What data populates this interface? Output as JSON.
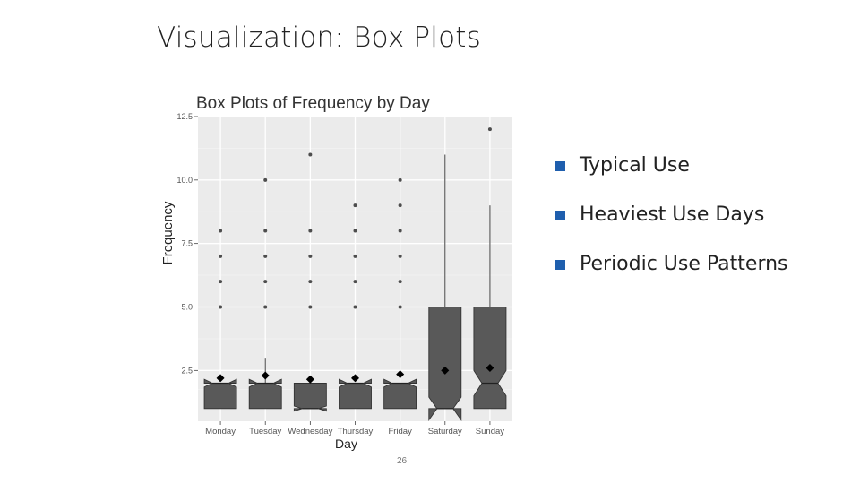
{
  "slide": {
    "title": "Visualization: Box Plots",
    "page_number": "26"
  },
  "bullets": [
    {
      "text": "Typical Use"
    },
    {
      "text": "Heaviest Use Days"
    },
    {
      "text": "Periodic Use Patterns"
    }
  ],
  "colors": {
    "bullet": "#1f5fae",
    "panel": "#ebebeb",
    "box_fill": "#595959",
    "mean_marker": "#000000",
    "outlier": "#4d4d4d"
  },
  "chart_data": {
    "type": "box",
    "title": "Box Plots of Frequency by Day",
    "xlabel": "Day",
    "ylabel": "Frequency",
    "ylim": [
      0.5,
      12.5
    ],
    "yticks": [
      2.5,
      5.0,
      7.5,
      10.0,
      12.5
    ],
    "ytick_labels": [
      "2.5",
      "5.0",
      "7.5",
      "10.0",
      "12.5"
    ],
    "grid": true,
    "notched": true,
    "categories": [
      "Monday",
      "Tuesday",
      "Wednesday",
      "Thursday",
      "Friday",
      "Saturday",
      "Sunday"
    ],
    "boxes": [
      {
        "day": "Monday",
        "min": 1,
        "q1": 1,
        "median": 2,
        "q3": 2,
        "max": 2,
        "mean": 2.2,
        "notch": [
          1.85,
          2.15
        ],
        "outliers": [
          5,
          6,
          7,
          8
        ]
      },
      {
        "day": "Tuesday",
        "min": 1,
        "q1": 1,
        "median": 2,
        "q3": 2,
        "max": 3,
        "mean": 2.3,
        "notch": [
          1.85,
          2.15
        ],
        "outliers": [
          5,
          6,
          7,
          8,
          10
        ]
      },
      {
        "day": "Wednesday",
        "min": 1,
        "q1": 1,
        "median": 1,
        "q3": 2,
        "max": 2,
        "mean": 2.15,
        "notch": [
          0.9,
          1.1
        ],
        "outliers": [
          5,
          6,
          7,
          8,
          11
        ]
      },
      {
        "day": "Thursday",
        "min": 1,
        "q1": 1,
        "median": 2,
        "q3": 2,
        "max": 2,
        "mean": 2.2,
        "notch": [
          1.85,
          2.15
        ],
        "outliers": [
          5,
          6,
          7,
          8,
          9
        ]
      },
      {
        "day": "Friday",
        "min": 1,
        "q1": 1,
        "median": 2,
        "q3": 2,
        "max": 2,
        "mean": 2.35,
        "notch": [
          1.85,
          2.15
        ],
        "outliers": [
          5,
          6,
          7,
          8,
          9,
          10
        ]
      },
      {
        "day": "Saturday",
        "min": 1,
        "q1": 1,
        "median": 1,
        "q3": 5,
        "max": 11,
        "mean": 2.5,
        "notch": [
          0.55,
          1.45
        ],
        "outliers": []
      },
      {
        "day": "Sunday",
        "min": 1,
        "q1": 1,
        "median": 2,
        "q3": 5,
        "max": 9,
        "mean": 2.6,
        "notch": [
          1.5,
          2.5
        ],
        "outliers": [
          12
        ]
      }
    ]
  }
}
